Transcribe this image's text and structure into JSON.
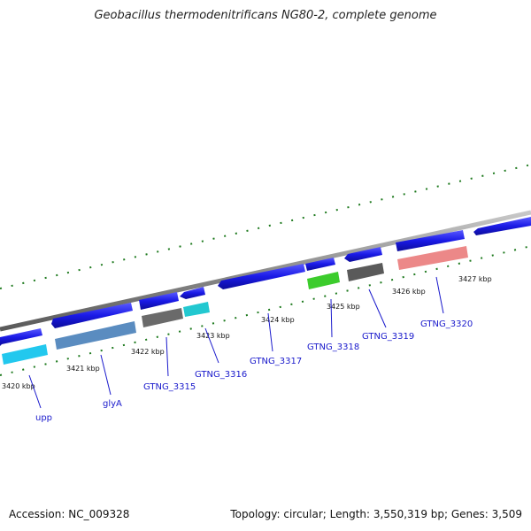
{
  "title": "Geobacillus thermodenitrificans NG80-2, complete genome",
  "footer": {
    "accession": "Accession: NC_009328",
    "summary": "Topology: circular; Length: 3,550,319 bp; Genes: 3,509"
  },
  "colors": {
    "forward_gene": "#1a1ae6",
    "backbone": "#8c8c8c",
    "tick": "#1e7a1e",
    "label": "#1a1acc",
    "upp": "#22c8ee",
    "glyA": "#5a8cc0",
    "GTNG_3315": "#6a6a6a",
    "GTNG_3316": "#22c8d0",
    "GTNG_3318": "#3ccc2c",
    "GTNG_3319": "#5a5a5a",
    "GTNG_3320": "#ec8888"
  },
  "kbp_labels": [
    "3420 kbp",
    "3421 kbp",
    "3422 kbp",
    "3423 kbp",
    "3424 kbp",
    "3425 kbp",
    "3426 kbp",
    "3427 kbp"
  ],
  "gene_labels": [
    "upp",
    "glyA",
    "GTNG_3315",
    "GTNG_3316",
    "GTNG_3317",
    "GTNG_3318",
    "GTNG_3319",
    "GTNG_3320"
  ]
}
